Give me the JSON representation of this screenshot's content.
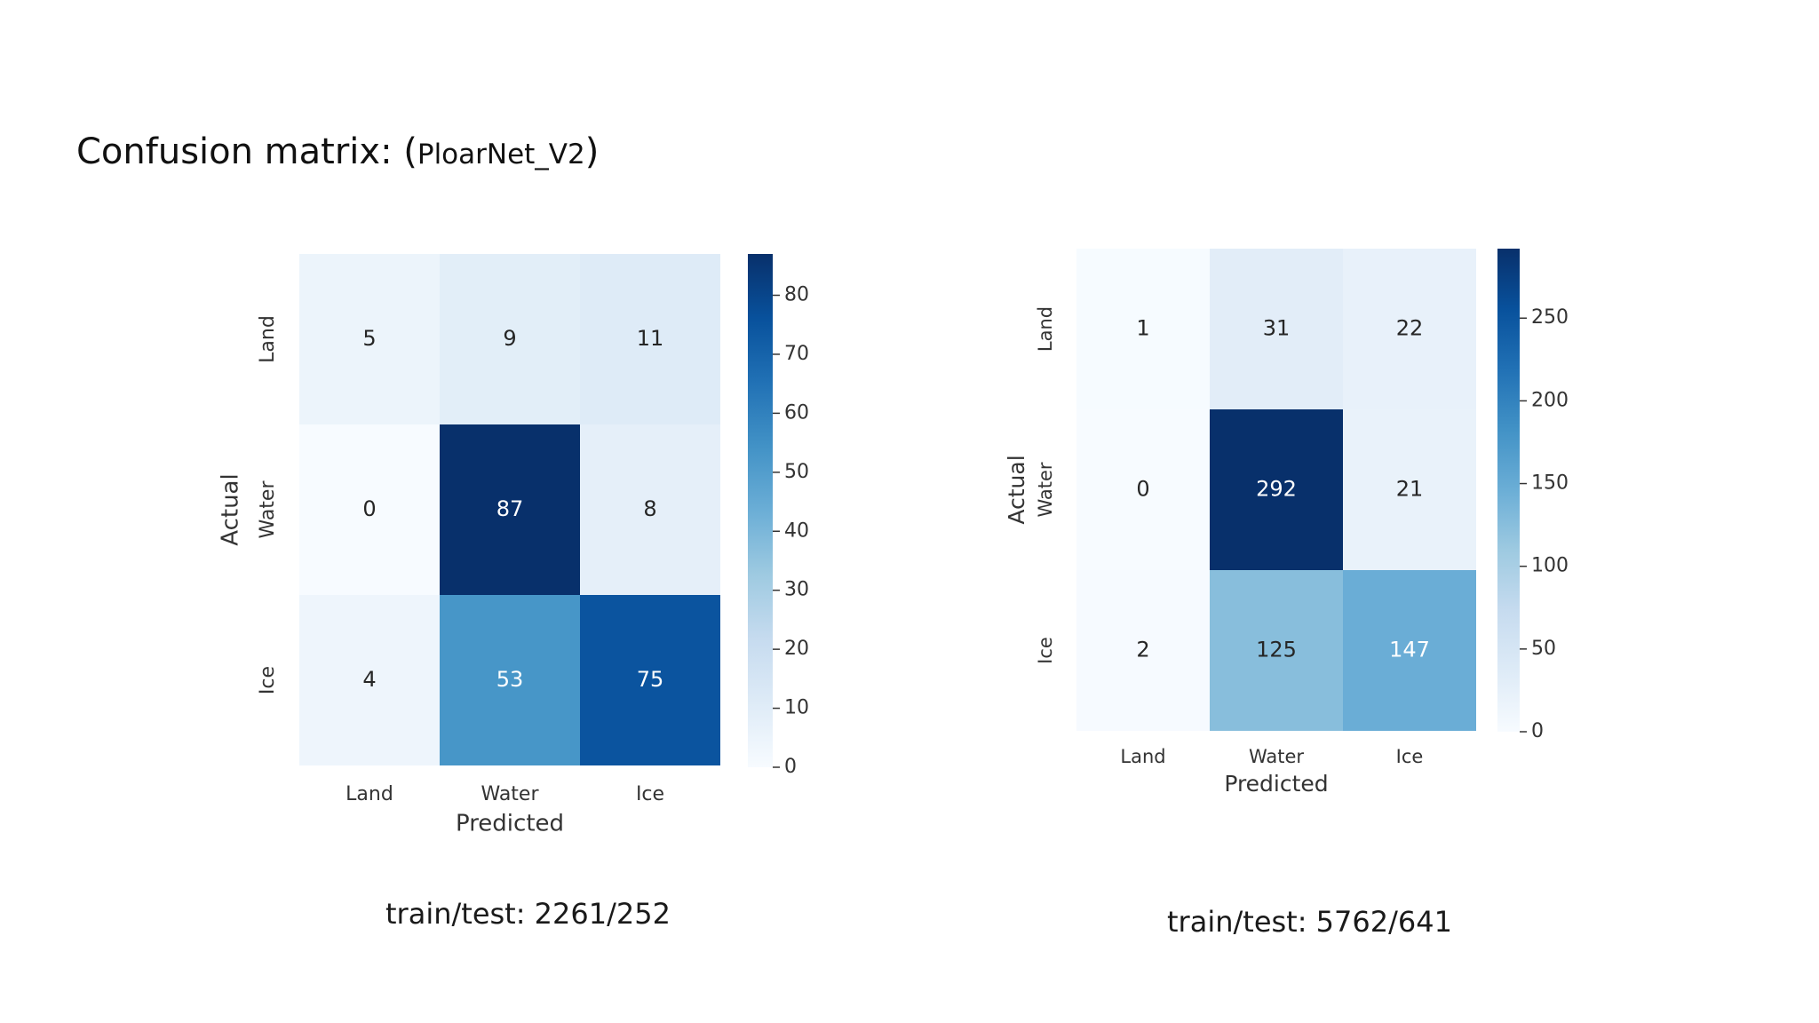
{
  "slide": {
    "title_prefix": "Confusion matrix: (",
    "title_model": "PloarNet_V2",
    "title_suffix": ")"
  },
  "chart_data": [
    {
      "type": "heatmap",
      "title": "",
      "xlabel": "Predicted",
      "ylabel": "Actual",
      "x_categories": [
        "Land",
        "Water",
        "Ice"
      ],
      "y_categories": [
        "Land",
        "Water",
        "Ice"
      ],
      "matrix": [
        [
          5,
          9,
          11
        ],
        [
          0,
          87,
          8
        ],
        [
          4,
          53,
          75
        ]
      ],
      "colormap": "Blues",
      "colorbar_range": [
        0,
        87
      ],
      "colorbar_ticks": [
        0,
        10,
        20,
        30,
        40,
        50,
        60,
        70,
        80
      ],
      "caption": "train/test: 2261/252"
    },
    {
      "type": "heatmap",
      "title": "",
      "xlabel": "Predicted",
      "ylabel": "Actual",
      "x_categories": [
        "Land",
        "Water",
        "Ice"
      ],
      "y_categories": [
        "Land",
        "Water",
        "Ice"
      ],
      "matrix": [
        [
          1,
          31,
          22
        ],
        [
          0,
          292,
          21
        ],
        [
          2,
          125,
          147
        ]
      ],
      "colormap": "Blues",
      "colorbar_range": [
        0,
        292
      ],
      "colorbar_ticks": [
        0,
        50,
        100,
        150,
        200,
        250
      ],
      "caption": "train/test: 5762/641"
    }
  ]
}
